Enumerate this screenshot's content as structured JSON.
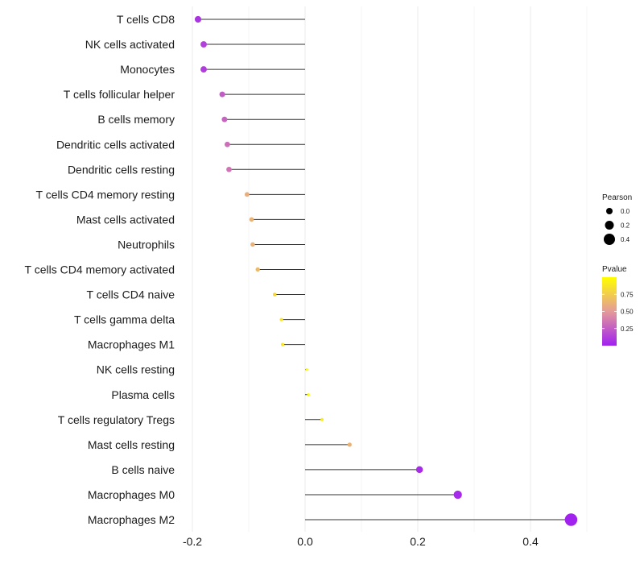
{
  "chart_data": {
    "type": "lollipop",
    "title": "",
    "xlabel": "",
    "ylabel": "",
    "xlim": [
      -0.2,
      0.5
    ],
    "x_ticks": [
      -0.2,
      0.0,
      0.2,
      0.4
    ],
    "x_tick_labels": [
      "-0.2",
      "0.0",
      "0.2",
      "0.4"
    ],
    "categories": [
      "T cells CD8",
      "NK cells activated",
      "Monocytes",
      "T cells follicular helper",
      "B cells memory",
      "Dendritic cells activated",
      "Dendritic cells resting",
      "T cells CD4 memory resting",
      "Mast cells activated",
      "Neutrophils",
      "T cells CD4 memory activated",
      "T cells CD4 naive",
      "T cells gamma delta",
      "Macrophages M1",
      "NK cells resting",
      "Plasma cells",
      "T cells regulatory  Tregs ",
      "Mast cells resting",
      "B cells naive",
      "Macrophages M0",
      "Macrophages M2"
    ],
    "values": [
      -0.19,
      -0.18,
      -0.18,
      -0.147,
      -0.143,
      -0.138,
      -0.135,
      -0.103,
      -0.095,
      -0.093,
      -0.084,
      -0.054,
      -0.042,
      -0.04,
      0.003,
      0.006,
      0.03,
      0.079,
      0.203,
      0.271,
      0.472
    ],
    "pvalues": [
      0.08,
      0.13,
      0.12,
      0.25,
      0.28,
      0.32,
      0.35,
      0.6,
      0.62,
      0.62,
      0.66,
      0.8,
      0.88,
      0.88,
      0.99,
      0.99,
      0.92,
      0.62,
      0.05,
      0.04,
      0.01
    ],
    "size_legend": {
      "title": "Pearson",
      "labels": [
        "0.0",
        "0.2",
        "0.4"
      ],
      "values": [
        0.0,
        0.2,
        0.4
      ]
    },
    "color_legend": {
      "title": "Pvalue",
      "labels": [
        "0.75",
        "0.50",
        "0.25"
      ],
      "values": [
        0.75,
        0.5,
        0.25
      ],
      "range": [
        0.0,
        1.0
      ],
      "low_color": "#a020f0",
      "mid_color": "#e49a9a",
      "high_color": "#ffff00"
    },
    "grid": true,
    "legend_position": "right"
  }
}
